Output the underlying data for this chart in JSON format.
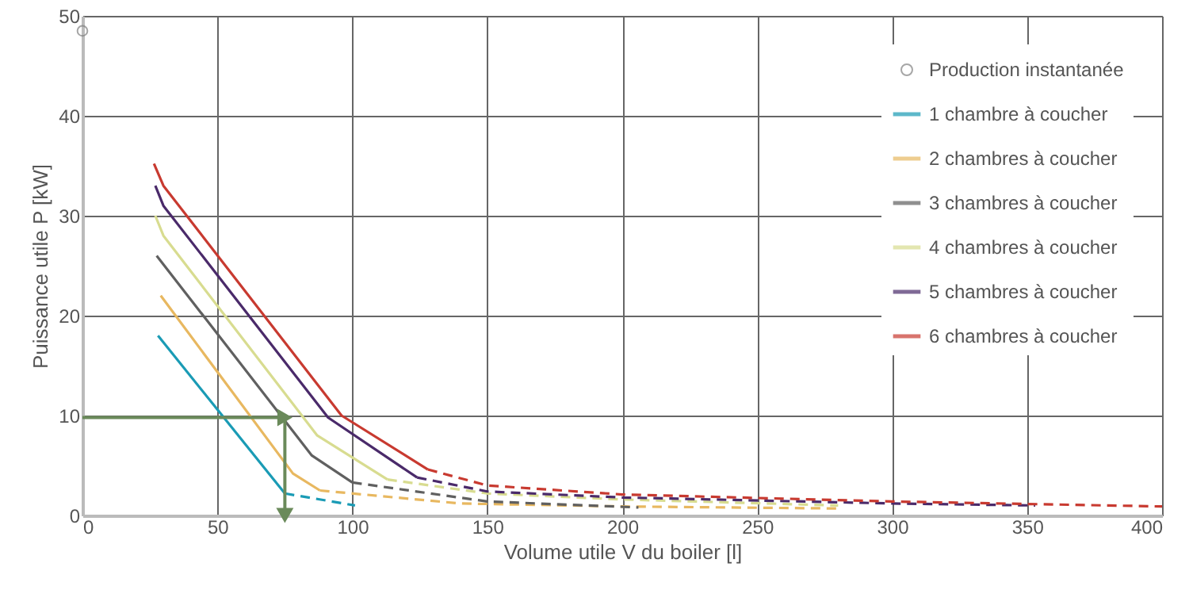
{
  "chart_data": {
    "type": "line",
    "xlabel": "Volume utile V du boiler [l]",
    "ylabel": "Puissance utile P [kW]",
    "xlim": [
      0,
      400
    ],
    "xticks": [
      0,
      50,
      100,
      150,
      200,
      250,
      300,
      350,
      400
    ],
    "ylim": [
      0,
      50
    ],
    "yticks": [
      0,
      10,
      20,
      30,
      40,
      50
    ],
    "grid": true,
    "legend": "top right",
    "line_style": "solid",
    "series": [
      {
        "name": "Production instantanée",
        "type": "scatter",
        "marker": "circle",
        "color": "#808080",
        "x": [
          0
        ],
        "values": [
          48.5
        ]
      },
      {
        "name": "1 chambre à coucher",
        "color": "#1a9bb5",
        "x": [
          28,
          75
        ],
        "values": [
          18,
          2.2
        ]
      },
      {
        "name": "2 chambres à coucher",
        "color": "#e8b860",
        "x": [
          29,
          78,
          88
        ],
        "values": [
          22,
          4.2,
          2.5
        ]
      },
      {
        "name": "3 chambres à coucher",
        "color": "#606060",
        "x": [
          27.5,
          85,
          100
        ],
        "values": [
          26,
          6,
          3.3
        ]
      },
      {
        "name": "4 chambres à coucher",
        "color": "#d8dc90",
        "x": [
          27,
          30,
          87,
          113
        ],
        "values": [
          30,
          28,
          8,
          3.6
        ]
      },
      {
        "name": "5 chambres à coucher",
        "color": "#4a2a6a",
        "x": [
          27,
          30,
          91,
          124
        ],
        "values": [
          33,
          31,
          9.8,
          3.8
        ]
      },
      {
        "name": "6 chambres à coucher",
        "color": "#c83a30",
        "x": [
          26.5,
          30,
          96,
          128
        ],
        "values": [
          35.2,
          33,
          10,
          4.6
        ]
      },
      {
        "color": "#1a9bb5",
        "line_style": "dashed",
        "x": [
          75,
          101
        ],
        "values": [
          2.2,
          1.0
        ]
      },
      {
        "color": "#e8b860",
        "line_style": "dashed",
        "x": [
          88,
          140,
          200,
          280
        ],
        "values": [
          2.5,
          1.2,
          0.9,
          0.7
        ]
      },
      {
        "color": "#606060",
        "line_style": "dashed",
        "x": [
          100,
          150,
          206
        ],
        "values": [
          3.3,
          1.4,
          0.8
        ]
      },
      {
        "color": "#d8dc90",
        "line_style": "dashed",
        "x": [
          113,
          150,
          200,
          280
        ],
        "values": [
          3.6,
          2.2,
          1.6,
          1.0
        ]
      },
      {
        "color": "#4a2a6a",
        "line_style": "dashed",
        "x": [
          124,
          150,
          200,
          300,
          353
        ],
        "values": [
          3.8,
          2.4,
          1.8,
          1.2,
          1.0
        ]
      },
      {
        "color": "#c83a30",
        "line_style": "dashed",
        "x": [
          128,
          150,
          200,
          300,
          400
        ],
        "values": [
          4.6,
          3.0,
          2.1,
          1.4,
          0.9
        ]
      }
    ],
    "ref_lines": [
      {
        "axis": "y",
        "value": 9.8,
        "color": "#6a8a5a"
      },
      {
        "axis": "x",
        "value": 75,
        "color": "#6a8a5a"
      }
    ]
  }
}
